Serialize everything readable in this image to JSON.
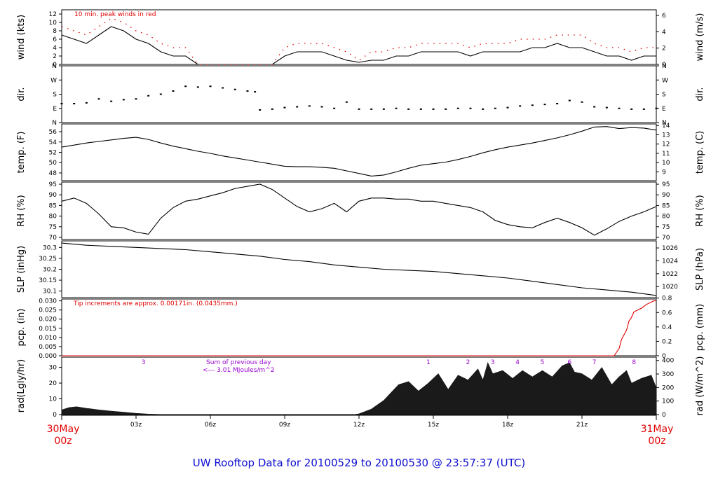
{
  "footer": "UW Rooftop Data for 20100529  to  20100530 @ 23:57:37  (UTC)",
  "colors": {
    "text": "#000000",
    "accent": "#e00000",
    "annotation": "#9900cc",
    "footer": "#1010d0",
    "fill": "#1a1a1a"
  },
  "x_axis": {
    "range_hours": [
      0,
      24
    ],
    "ticks": [
      {
        "h": 3,
        "label": "03z"
      },
      {
        "h": 6,
        "label": "06z"
      },
      {
        "h": 9,
        "label": "09z"
      },
      {
        "h": 12,
        "label": "12z"
      },
      {
        "h": 15,
        "label": "15z"
      },
      {
        "h": 18,
        "label": "18z"
      },
      {
        "h": 21,
        "label": "21z"
      }
    ],
    "start_label": {
      "date": "30May",
      "time": "00z"
    },
    "end_label": {
      "date": "31May",
      "time": "00z"
    }
  },
  "chart_data": [
    {
      "type": "line",
      "id": "wind",
      "ylabel_left": "wind (kts)",
      "ylabel_right": "wind (m/s)",
      "ylim": [
        0,
        13
      ],
      "left_ticks": [
        0,
        2,
        4,
        6,
        8,
        10,
        12
      ],
      "right_ticks": [
        0,
        2,
        4,
        6
      ],
      "annotation": "10 min. peak winds in red",
      "x_hours": [
        0,
        0.5,
        1,
        1.5,
        2,
        2.5,
        3,
        3.5,
        4,
        4.5,
        5,
        5.5,
        6,
        6.5,
        7,
        7.5,
        8,
        8.5,
        9,
        9.5,
        10,
        10.5,
        11,
        11.5,
        12,
        12.5,
        13,
        13.5,
        14,
        14.5,
        15,
        15.5,
        16,
        16.5,
        17,
        17.5,
        18,
        18.5,
        19,
        19.5,
        20,
        20.5,
        21,
        21.5,
        22,
        22.5,
        23,
        23.5,
        24
      ],
      "series": [
        {
          "values": [
            7,
            6,
            5,
            7,
            9,
            8,
            6,
            5,
            3,
            2,
            2,
            0,
            0,
            0,
            0,
            0,
            0,
            0,
            2,
            3,
            3,
            3,
            2,
            1,
            0.5,
            1,
            1,
            2,
            2,
            3,
            3,
            3,
            3,
            2,
            3,
            3,
            3,
            3,
            4,
            4,
            5,
            4,
            4,
            3,
            2,
            2,
            1,
            2,
            2
          ]
        },
        {
          "values": [
            9,
            8,
            7,
            9,
            11,
            10,
            8,
            7,
            5,
            4,
            4,
            0,
            0,
            0,
            0,
            0,
            0,
            0,
            4,
            5,
            5,
            5,
            4,
            3,
            1,
            3,
            3,
            4,
            4,
            5,
            5,
            5,
            5,
            4,
            5,
            5,
            5,
            6,
            6,
            6,
            7,
            7,
            7,
            5,
            4,
            4,
            3,
            4,
            4
          ]
        }
      ]
    },
    {
      "type": "scatter",
      "id": "direction",
      "ylabel_left": "dir.",
      "ylabel_right": "dir.",
      "ylim": [
        0,
        360
      ],
      "categories": [
        "N",
        "E",
        "S",
        "W",
        "N"
      ],
      "x_hours": [
        0,
        0.5,
        1,
        1.5,
        2,
        2.5,
        3,
        3.5,
        4,
        4.5,
        5,
        5.5,
        6,
        6.5,
        7,
        7.5,
        7.8,
        8,
        8.5,
        9,
        9.5,
        10,
        10.5,
        11,
        11.5,
        12,
        12.5,
        13,
        13.5,
        14,
        14.5,
        15,
        15.5,
        16,
        16.5,
        17,
        17.5,
        18,
        18.5,
        19,
        19.5,
        20,
        20.5,
        21,
        21.5,
        22,
        22.5,
        23,
        23.5,
        24
      ],
      "values": [
        120,
        120,
        125,
        150,
        135,
        145,
        150,
        170,
        180,
        200,
        230,
        225,
        230,
        220,
        210,
        200,
        195,
        80,
        85,
        95,
        100,
        105,
        100,
        90,
        130,
        85,
        85,
        85,
        90,
        85,
        85,
        85,
        85,
        90,
        90,
        85,
        90,
        95,
        105,
        110,
        115,
        120,
        140,
        130,
        100,
        95,
        90,
        85,
        85,
        90
      ]
    },
    {
      "type": "line",
      "id": "temperature",
      "ylabel_left": "temp. (F)",
      "ylabel_right": "temp. (C)",
      "ylim": [
        46.5,
        57.5
      ],
      "left_ticks": [
        48,
        50,
        52,
        54,
        56
      ],
      "right_ticks": [
        9,
        10,
        11,
        12,
        13,
        14
      ],
      "x_hours": [
        0,
        0.5,
        1,
        1.5,
        2,
        2.5,
        3,
        3.5,
        4,
        4.5,
        5,
        5.5,
        6,
        6.5,
        7,
        7.5,
        8,
        8.5,
        9,
        9.5,
        10,
        10.5,
        11,
        11.5,
        12,
        12.5,
        13,
        13.5,
        14,
        14.5,
        15,
        15.5,
        16,
        16.5,
        17,
        17.5,
        18,
        18.5,
        19,
        19.5,
        20,
        20.5,
        21,
        21.5,
        22,
        22.5,
        23,
        23.5,
        24
      ],
      "values": [
        53,
        53.4,
        53.8,
        54.1,
        54.4,
        54.7,
        54.9,
        54.5,
        53.8,
        53.2,
        52.7,
        52.2,
        51.8,
        51.3,
        50.9,
        50.5,
        50.1,
        49.7,
        49.3,
        49.2,
        49.2,
        49.1,
        48.9,
        48.4,
        47.9,
        47.4,
        47.6,
        48.2,
        48.9,
        49.5,
        49.8,
        50.1,
        50.6,
        51.2,
        51.9,
        52.5,
        53,
        53.4,
        53.8,
        54.3,
        54.8,
        55.4,
        56.1,
        56.9,
        57,
        56.6,
        56.8,
        56.7,
        56.3
      ]
    },
    {
      "type": "line",
      "id": "relative-humidity",
      "ylabel_left": "RH (%)",
      "ylabel_right": "RH (%)",
      "ylim": [
        69,
        96
      ],
      "left_ticks": [
        70,
        75,
        80,
        85,
        90,
        95
      ],
      "right_ticks": [
        70,
        75,
        80,
        85,
        90,
        95
      ],
      "x_hours": [
        0,
        0.5,
        1,
        1.5,
        2,
        2.5,
        3,
        3.5,
        4,
        4.5,
        5,
        5.5,
        6,
        6.5,
        7,
        7.5,
        8,
        8.5,
        9,
        9.5,
        10,
        10.5,
        11,
        11.5,
        12,
        12.5,
        13,
        13.5,
        14,
        14.5,
        15,
        15.5,
        16,
        16.5,
        17,
        17.5,
        18,
        18.5,
        19,
        19.5,
        20,
        20.5,
        21,
        21.5,
        22,
        22.5,
        23,
        23.5,
        24
      ],
      "values": [
        87,
        88.5,
        86,
        81,
        75,
        74.5,
        72.5,
        71.5,
        79,
        84,
        87,
        88,
        89.5,
        91,
        93,
        94,
        95,
        92.5,
        88.5,
        84.5,
        82,
        83.5,
        86,
        82,
        87,
        88.5,
        88.5,
        88,
        88,
        87,
        87,
        86,
        85,
        84,
        82,
        78,
        76,
        75,
        74.5,
        77,
        79,
        77,
        74.5,
        71,
        74,
        77.5,
        80,
        82,
        84.5
      ]
    },
    {
      "type": "line",
      "id": "sea-level-pressure",
      "ylabel_left": "SLP (inHg)",
      "ylabel_right": "SLP (hPa)",
      "ylim": [
        30.07,
        30.33
      ],
      "left_ticks": [
        30.1,
        30.15,
        30.2,
        30.25,
        30.3
      ],
      "right_ticks": [
        1020,
        1022,
        1024,
        1026
      ],
      "x_hours": [
        0,
        1,
        2,
        3,
        4,
        5,
        6,
        7,
        8,
        9,
        10,
        11,
        12,
        13,
        14,
        15,
        16,
        17,
        18,
        19,
        20,
        21,
        22,
        23,
        24
      ],
      "values": [
        30.32,
        30.31,
        30.305,
        30.3,
        30.295,
        30.29,
        30.28,
        30.27,
        30.26,
        30.245,
        30.235,
        30.22,
        30.21,
        30.2,
        30.195,
        30.19,
        30.18,
        30.17,
        30.16,
        30.145,
        30.13,
        30.115,
        30.105,
        30.095,
        30.08
      ]
    },
    {
      "type": "line",
      "id": "precipitation",
      "ylabel_left": "pcp. (in)",
      "ylabel_right": "pcp. (mm)",
      "ylim": [
        0,
        0.031
      ],
      "left_ticks": [
        0,
        0.005,
        0.01,
        0.015,
        0.02,
        0.025,
        0.03
      ],
      "left_tick_labels": [
        "0.000",
        "0.005",
        "0.010",
        "0.015",
        "0.020",
        "0.025",
        "0.030"
      ],
      "right_ticks": [
        0,
        0.2,
        0.4,
        0.6,
        0.8
      ],
      "annotation": "Tip increments are approx. 0.00171in. (0.0435mm.)",
      "x_hours": [
        0,
        22.3,
        22.5,
        22.6,
        22.8,
        22.9,
        23,
        23.1,
        23.4,
        23.6,
        23.9,
        24
      ],
      "values": [
        0,
        0,
        0.004,
        0.009,
        0.014,
        0.019,
        0.021,
        0.024,
        0.026,
        0.028,
        0.03,
        0.03
      ]
    },
    {
      "type": "area",
      "id": "radiation",
      "ylabel_left": "rad(Lgly/hr)",
      "ylabel_right": "rad (W/m^2)",
      "ylim": [
        0,
        36.5
      ],
      "left_ticks": [
        0,
        10,
        20,
        30
      ],
      "right_ticks": [
        0,
        100,
        200,
        300,
        400
      ],
      "annotation_lines": [
        "Sum of previous day",
        "<--- 3.01 MJoules/m^2"
      ],
      "hour_markers": [
        {
          "h": 3.3,
          "label": "3"
        },
        {
          "h": 14.8,
          "label": "1"
        },
        {
          "h": 16.4,
          "label": "2"
        },
        {
          "h": 17.4,
          "label": "3"
        },
        {
          "h": 18.4,
          "label": "4"
        },
        {
          "h": 19.4,
          "label": "5"
        },
        {
          "h": 20.5,
          "label": "6"
        },
        {
          "h": 21.5,
          "label": "7"
        },
        {
          "h": 23.1,
          "label": "8"
        }
      ],
      "x_hours": [
        0,
        0.3,
        0.6,
        1,
        1.5,
        2,
        2.5,
        3,
        3.5,
        4,
        4.05,
        11.8,
        12,
        12.5,
        13,
        13.3,
        13.6,
        14,
        14.4,
        14.8,
        15.2,
        15.6,
        16,
        16.4,
        16.8,
        17,
        17.2,
        17.4,
        17.8,
        18.2,
        18.6,
        19,
        19.4,
        19.8,
        20.2,
        20.5,
        20.7,
        21,
        21.4,
        21.8,
        22.2,
        22.5,
        22.8,
        23,
        23.4,
        23.8,
        24
      ],
      "values": [
        3,
        4.5,
        5,
        4,
        3,
        2.2,
        1.5,
        0.8,
        0.3,
        0.1,
        0,
        0,
        0.5,
        3.5,
        9,
        14,
        19,
        21,
        15,
        20,
        26,
        16,
        25,
        22,
        29,
        22,
        33,
        26,
        28,
        23,
        28,
        24,
        28,
        24,
        31,
        33,
        27,
        26,
        22,
        30,
        19,
        24,
        28,
        20,
        23,
        25,
        17
      ]
    }
  ]
}
